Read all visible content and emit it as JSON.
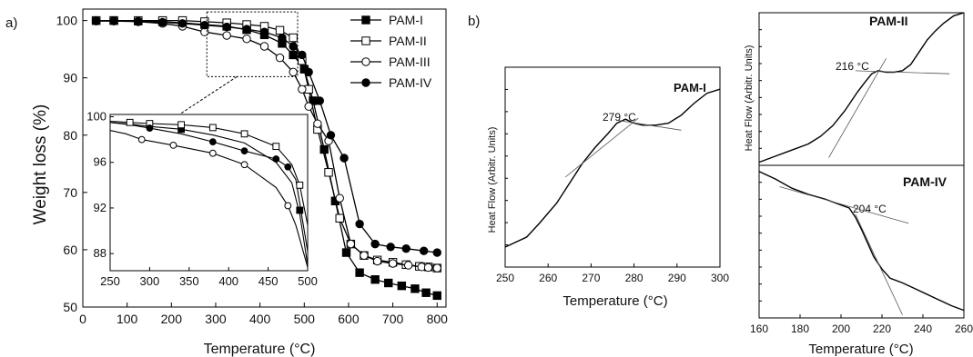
{
  "panel_labels": [
    "a)",
    "b)"
  ],
  "chart_data": [
    {
      "id": "tga",
      "type": "line",
      "xlabel": "Temperature (°C)",
      "ylabel": "Weight loss (%)",
      "xlim": [
        0,
        820
      ],
      "ylim": [
        50,
        102
      ],
      "xticks": [
        0,
        100,
        200,
        300,
        400,
        500,
        600,
        700,
        800
      ],
      "yticks": [
        50,
        60,
        70,
        80,
        90,
        100
      ],
      "legend_position": "top-right",
      "series": [
        {
          "name": "PAM-I",
          "marker": "filled-square",
          "x": [
            30,
            70,
            125,
            180,
            225,
            275,
            325,
            370,
            410,
            450,
            475,
            500,
            520,
            545,
            570,
            595,
            625,
            660,
            690,
            720,
            750,
            775,
            800
          ],
          "y": [
            100,
            100,
            99.9,
            99.8,
            99.6,
            99.3,
            99.0,
            98.4,
            97.5,
            96.0,
            94.0,
            91.5,
            86,
            77.5,
            68.5,
            59.5,
            56,
            54.8,
            54.2,
            53.7,
            53.2,
            52.5,
            52
          ]
        },
        {
          "name": "PAM-II",
          "marker": "open-square",
          "x": [
            30,
            70,
            125,
            180,
            225,
            275,
            325,
            370,
            410,
            445,
            475,
            495,
            510,
            530,
            555,
            580,
            605,
            635,
            665,
            700,
            730,
            760,
            780,
            800
          ],
          "y": [
            100,
            100,
            100,
            100,
            100,
            99.8,
            99.6,
            99.3,
            99.0,
            98.3,
            97,
            93,
            88,
            81,
            73.5,
            65.5,
            61,
            59,
            58.2,
            57.8,
            57.4,
            57.1,
            57,
            56.8
          ]
        },
        {
          "name": "PAM-III",
          "marker": "open-circle",
          "x": [
            30,
            70,
            125,
            180,
            225,
            275,
            325,
            370,
            410,
            445,
            475,
            495,
            510,
            530,
            555,
            580,
            605,
            635,
            665,
            700,
            735,
            765,
            780,
            800
          ],
          "y": [
            99.9,
            99.9,
            99.8,
            99.5,
            99.0,
            98.0,
            97.4,
            96.8,
            95.5,
            93.5,
            91,
            88,
            85,
            82,
            79,
            69,
            61,
            59,
            58,
            57.6,
            57.3,
            57,
            56.9,
            56.8
          ]
        },
        {
          "name": "PAM-IV",
          "marker": "filled-circle",
          "x": [
            30,
            70,
            125,
            180,
            225,
            275,
            325,
            370,
            410,
            450,
            475,
            495,
            510,
            535,
            560,
            590,
            625,
            660,
            695,
            730,
            770,
            800
          ],
          "y": [
            100,
            100,
            99.9,
            99.7,
            99.5,
            99.2,
            98.9,
            98.5,
            98.0,
            97.0,
            95.5,
            94,
            91,
            86,
            80,
            76,
            64.5,
            61,
            60.5,
            60.2,
            59.8,
            59.5
          ]
        }
      ],
      "inset": {
        "xlim": [
          250,
          500
        ],
        "ylim": [
          86.5,
          100.2
        ],
        "xticks": [
          250,
          300,
          350,
          400,
          450,
          500
        ],
        "yticks": [
          88,
          92,
          96,
          100
        ],
        "series": [
          {
            "name": "PAM-I",
            "marker": "filled-square",
            "x": [
              250,
              275,
              300,
              340,
              380,
              420,
              460,
              480,
              490,
              500
            ],
            "y": [
              99.5,
              99.35,
              99.15,
              98.9,
              98.4,
              97.7,
              96.0,
              94.2,
              91.5,
              87.0
            ]
          },
          {
            "name": "PAM-II",
            "marker": "open-square",
            "x": [
              250,
              275,
              300,
              340,
              380,
              420,
              460,
              480,
              490,
              500
            ],
            "y": [
              99.6,
              99.5,
              99.4,
              99.3,
              99.05,
              98.5,
              97.4,
              95.8,
              94.0,
              90.5
            ]
          },
          {
            "name": "PAM-III",
            "marker": "open-circle",
            "x": [
              250,
              270,
              290,
              330,
              380,
              420,
              460,
              475,
              485,
              500
            ],
            "y": [
              98.8,
              98.5,
              98.0,
              97.5,
              96.8,
              95.8,
              93.8,
              92.2,
              90.5,
              86.8
            ]
          },
          {
            "name": "PAM-IV",
            "marker": "filled-circle",
            "x": [
              250,
              275,
              300,
              340,
              380,
              420,
              460,
              475,
              485,
              500
            ],
            "y": [
              99.5,
              99.3,
              99.0,
              98.5,
              97.8,
              97.0,
              96.3,
              95.6,
              94.5,
              88.2
            ]
          }
        ],
        "markers": [
          {
            "series": "PAM-I",
            "x": [
              340,
              490
            ],
            "y": [
              98.9,
              91.8
            ]
          },
          {
            "series": "PAM-II",
            "x": [
              275,
              300,
              340,
              380,
              420,
              460,
              490
            ],
            "y": [
              99.5,
              99.4,
              99.3,
              99.05,
              98.5,
              97.4,
              94.0
            ]
          },
          {
            "series": "PAM-III",
            "x": [
              290,
              330,
              380,
              420,
              475
            ],
            "y": [
              98.0,
              97.5,
              96.8,
              95.8,
              92.2
            ]
          },
          {
            "series": "PAM-IV",
            "x": [
              300,
              380,
              420,
              460,
              475
            ],
            "y": [
              99.0,
              97.8,
              97.0,
              96.3,
              95.6
            ]
          }
        ]
      }
    },
    {
      "id": "dsc-pam-i",
      "type": "line",
      "title": "PAM-I",
      "xlabel": "Temperature (°C)",
      "ylabel": "Heat Flow (Arbitr. Units)",
      "xlim": [
        250,
        300
      ],
      "xticks": [
        250,
        260,
        270,
        280,
        290,
        300
      ],
      "ylim": [
        0,
        1
      ],
      "annotation": "279 °C",
      "x": [
        250,
        255,
        258,
        262,
        265,
        268,
        271,
        274,
        276,
        278,
        280,
        282,
        285,
        288,
        291,
        294,
        297,
        300
      ],
      "y": [
        0.1,
        0.15,
        0.22,
        0.32,
        0.42,
        0.52,
        0.6,
        0.67,
        0.72,
        0.74,
        0.72,
        0.71,
        0.71,
        0.72,
        0.76,
        0.82,
        0.87,
        0.89
      ],
      "tangents": [
        {
          "x": [
            264,
            281
          ],
          "y": [
            0.45,
            0.745
          ]
        },
        {
          "x": [
            276,
            291
          ],
          "y": [
            0.735,
            0.685
          ]
        }
      ]
    },
    {
      "id": "dsc-pam-ii",
      "type": "line",
      "title": "PAM-II",
      "xlabel": "",
      "ylabel": "Heat Flow (Arbitr. Units)",
      "xlim": [
        160,
        260
      ],
      "ylim": [
        0,
        1
      ],
      "annotation": "216 °C",
      "x": [
        160,
        168,
        176,
        184,
        190,
        196,
        202,
        208,
        212,
        215,
        218,
        222,
        226,
        230,
        234,
        238,
        242,
        246,
        250,
        255,
        260
      ],
      "y": [
        0.02,
        0.06,
        0.1,
        0.14,
        0.19,
        0.26,
        0.36,
        0.48,
        0.55,
        0.6,
        0.62,
        0.61,
        0.61,
        0.62,
        0.66,
        0.74,
        0.82,
        0.88,
        0.93,
        0.98,
        1.0
      ],
      "tangents": [
        {
          "x": [
            194,
            222
          ],
          "y": [
            0.05,
            0.7
          ]
        },
        {
          "x": [
            207,
            253
          ],
          "y": [
            0.62,
            0.6
          ]
        }
      ]
    },
    {
      "id": "dsc-pam-iv",
      "type": "line",
      "title": "PAM-IV",
      "xlabel": "Temperature (°C)",
      "ylabel": "",
      "xlim": [
        160,
        260
      ],
      "xticks": [
        160,
        180,
        200,
        220,
        240,
        260
      ],
      "ylim": [
        0,
        1
      ],
      "annotation": "204 °C",
      "x": [
        160,
        168,
        176,
        184,
        192,
        200,
        204,
        207,
        210,
        213,
        216,
        220,
        224,
        230,
        238,
        246,
        254,
        260
      ],
      "y": [
        0.96,
        0.91,
        0.85,
        0.81,
        0.78,
        0.74,
        0.72,
        0.66,
        0.58,
        0.49,
        0.4,
        0.32,
        0.26,
        0.23,
        0.18,
        0.13,
        0.08,
        0.05
      ],
      "tangents": [
        {
          "x": [
            170,
            233
          ],
          "y": [
            0.86,
            0.62
          ]
        },
        {
          "x": [
            207,
            230
          ],
          "y": [
            0.68,
            0.02
          ]
        }
      ]
    }
  ]
}
